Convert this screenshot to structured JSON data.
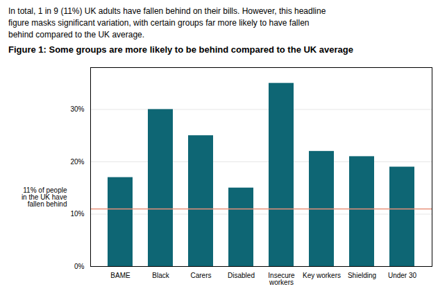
{
  "chart_data": {
    "type": "bar",
    "title": "Figure 1: Some groups are more likely to be behind compared to the UK average",
    "subtitle": "In total, 1 in 9 (11%) UK adults have fallen behind on their bills. However, this headline\nfigure masks significant variation, with certain groups far more likely to have fallen\nbehind compared to the UK average.",
    "categories": [
      "BAME",
      "Black",
      "Carers",
      "Disabled",
      "Insecure\nworkers",
      "Key workers",
      "Shielding",
      "Under 30"
    ],
    "values": [
      17,
      30,
      25,
      15,
      35,
      22,
      21,
      19
    ],
    "color": "#0e6674",
    "ylim": [
      0,
      38
    ],
    "yticks": [
      {
        "value": 0,
        "label": "0%"
      },
      {
        "value": 10,
        "label": "10%"
      },
      {
        "value": 20,
        "label": "20%"
      },
      {
        "value": 30,
        "label": "30%"
      }
    ],
    "grid": true,
    "annotations": [
      {
        "y": 11,
        "label": "11% of people\nin the UK have\nfallen behind",
        "color": "#e8917a"
      }
    ]
  }
}
